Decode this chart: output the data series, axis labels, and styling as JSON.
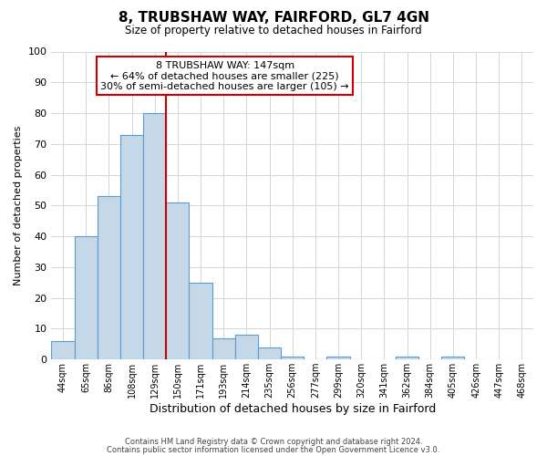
{
  "title": "8, TRUBSHAW WAY, FAIRFORD, GL7 4GN",
  "subtitle": "Size of property relative to detached houses in Fairford",
  "xlabel": "Distribution of detached houses by size in Fairford",
  "ylabel": "Number of detached properties",
  "bar_labels": [
    "44sqm",
    "65sqm",
    "86sqm",
    "108sqm",
    "129sqm",
    "150sqm",
    "171sqm",
    "193sqm",
    "214sqm",
    "235sqm",
    "256sqm",
    "277sqm",
    "299sqm",
    "320sqm",
    "341sqm",
    "362sqm",
    "384sqm",
    "405sqm",
    "426sqm",
    "447sqm",
    "468sqm"
  ],
  "bar_values": [
    6,
    40,
    53,
    73,
    80,
    51,
    25,
    7,
    8,
    4,
    1,
    0,
    1,
    0,
    0,
    1,
    0,
    1,
    0,
    0,
    0
  ],
  "bar_color": "#c5d8e8",
  "bar_edge_color": "#5b9bd5",
  "vline_pos": 4.5,
  "vline_color": "#cc0000",
  "ylim": [
    0,
    100
  ],
  "annotation_text": "8 TRUBSHAW WAY: 147sqm\n← 64% of detached houses are smaller (225)\n30% of semi-detached houses are larger (105) →",
  "annotation_box_color": "#ffffff",
  "annotation_box_edge_color": "#cc0000",
  "footer1": "Contains HM Land Registry data © Crown copyright and database right 2024.",
  "footer2": "Contains public sector information licensed under the Open Government Licence v3.0.",
  "background_color": "#ffffff",
  "grid_color": "#d0d8e0"
}
